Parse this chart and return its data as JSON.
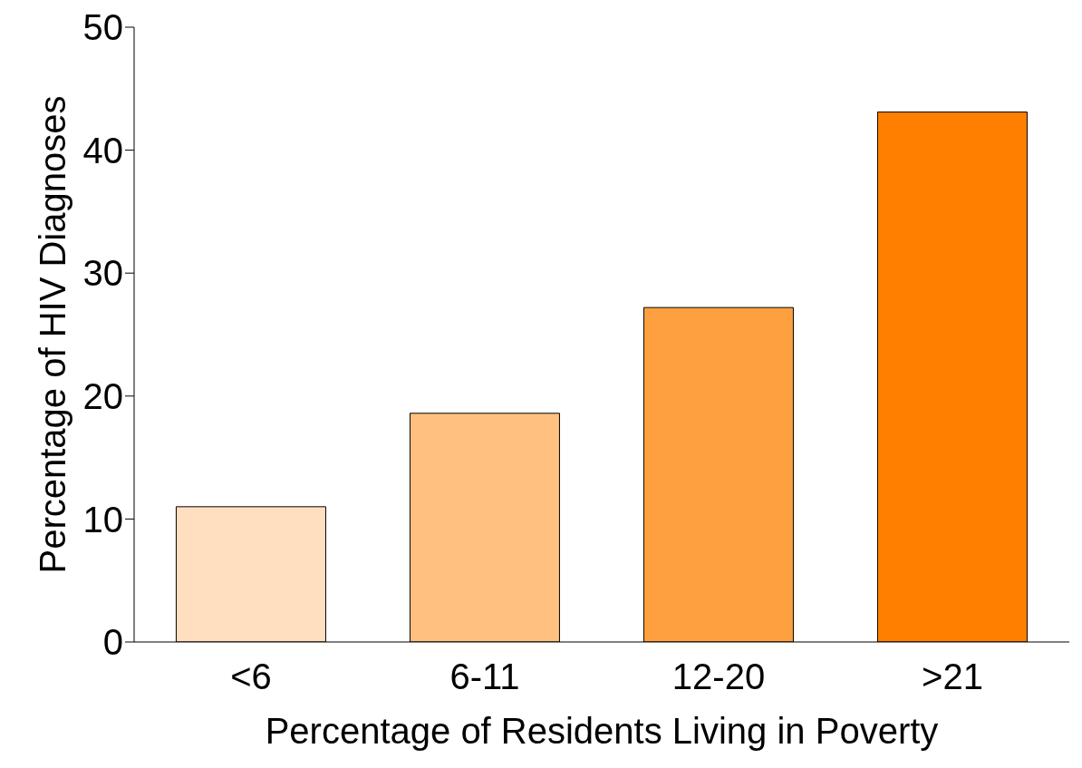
{
  "chart_data": {
    "type": "bar",
    "xlabel": "Percentage of Residents Living in Poverty",
    "ylabel": "Percentage of HIV Diagnoses",
    "categories": [
      "<6",
      "6-11",
      "12-20",
      ">21"
    ],
    "values": [
      11,
      18.6,
      27.2,
      43.1
    ],
    "colors": [
      "#ffdfc0",
      "#ffc080",
      "#ffa040",
      "#ff8000"
    ],
    "ylim": [
      0,
      50
    ],
    "yticks": [
      0,
      10,
      20,
      30,
      40,
      50
    ],
    "grid": false,
    "legend": false
  }
}
